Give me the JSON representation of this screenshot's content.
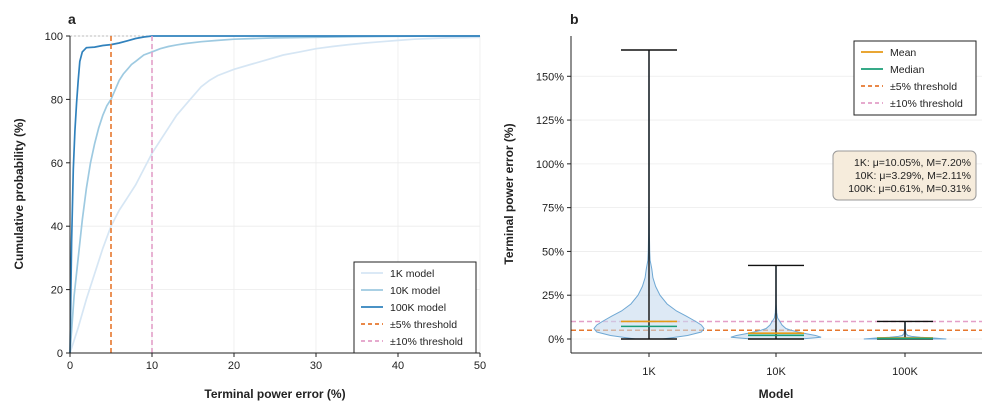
{
  "chart_data": [
    {
      "panel": "a",
      "type": "line",
      "xlabel": "Terminal power error (%)",
      "ylabel": "Cumulative probability (%)",
      "xlim": [
        0,
        50
      ],
      "ylim": [
        0,
        100
      ],
      "xticks": [
        0,
        10,
        20,
        30,
        40,
        50
      ],
      "yticks": [
        0,
        20,
        40,
        60,
        80,
        100
      ],
      "grid": true,
      "legend_position": "bottom-right",
      "reference_line_y": 100,
      "series": [
        {
          "name": "1K model",
          "color": "#d6e6f4",
          "x": [
            0,
            1,
            2,
            3,
            4,
            5,
            6,
            7,
            8,
            9,
            10,
            11,
            12,
            13,
            14,
            15,
            16,
            17,
            18,
            20,
            22,
            24,
            26,
            28,
            30,
            32,
            34,
            36,
            38,
            40,
            42,
            44,
            46,
            48,
            50
          ],
          "y": [
            0,
            8,
            17,
            25,
            33,
            40,
            45,
            49,
            53,
            58,
            63,
            67,
            71,
            75,
            78,
            81,
            84,
            86,
            87.5,
            89.5,
            91,
            92.5,
            94,
            95,
            96,
            96.7,
            97.3,
            97.8,
            98.2,
            98.6,
            99,
            99.2,
            99.4,
            99.5,
            99.6
          ]
        },
        {
          "name": "10K model",
          "color": "#9ecae1",
          "x": [
            0,
            0.5,
            1,
            1.5,
            2,
            2.5,
            3,
            3.5,
            4,
            4.5,
            5,
            5.5,
            6,
            6.5,
            7,
            7.5,
            8,
            8.5,
            9,
            10,
            11,
            12,
            13,
            14,
            16,
            18,
            20,
            25,
            30,
            35,
            40,
            45,
            50
          ],
          "y": [
            0,
            18,
            30,
            42,
            52,
            60,
            66,
            71,
            75,
            78,
            80,
            83,
            86,
            88,
            89.5,
            91,
            92,
            93,
            94,
            95,
            96,
            96.7,
            97.2,
            97.6,
            98.2,
            98.6,
            99,
            99.4,
            99.6,
            99.8,
            99.9,
            100,
            100
          ]
        },
        {
          "name": "100K model",
          "color": "#3182bd",
          "x": [
            0,
            0.2,
            0.4,
            0.6,
            0.8,
            1,
            1.2,
            1.5,
            2,
            3,
            4,
            5,
            6,
            7,
            8,
            9,
            10,
            12,
            15,
            20,
            30,
            40,
            50
          ],
          "y": [
            0,
            35,
            58,
            70,
            79,
            86,
            92,
            95,
            96.3,
            96.5,
            97,
            97.3,
            97.8,
            98.5,
            99.2,
            99.7,
            100,
            100,
            100,
            100,
            100,
            100,
            100
          ]
        },
        {
          "name": "±5% threshold",
          "color": "#e6772e",
          "style": "dashed",
          "x": [
            5,
            5
          ],
          "y": [
            0,
            100
          ]
        },
        {
          "name": "±10% threshold",
          "color": "#e39fc8",
          "style": "dashed",
          "x": [
            10,
            10
          ],
          "y": [
            0,
            100
          ]
        }
      ]
    },
    {
      "panel": "b",
      "type": "violin",
      "xlabel": "Model",
      "ylabel": "Terminal power error (%)",
      "categories": [
        "1K",
        "10K",
        "100K"
      ],
      "yticks": [
        0,
        25,
        50,
        75,
        100,
        125,
        150
      ],
      "ytick_labels": [
        "0%",
        "25%",
        "50%",
        "75%",
        "100%",
        "125%",
        "150%"
      ],
      "ylim": [
        -8,
        173
      ],
      "grid": true,
      "legend_position": "top-right",
      "thresholds": [
        {
          "name": "±5% threshold",
          "value": 5,
          "color": "#e6772e"
        },
        {
          "name": "±10% threshold",
          "value": 10,
          "color": "#e39fc8"
        }
      ],
      "mean_color": "#e69a17",
      "median_color": "#1a9e77",
      "violins": [
        {
          "model": "1K",
          "min": 0,
          "max": 165,
          "mean": 10.05,
          "median": 7.2,
          "profile": [
            [
              0,
              0.25
            ],
            [
              2,
              0.7
            ],
            [
              4,
              0.95
            ],
            [
              6,
              1.0
            ],
            [
              8,
              0.95
            ],
            [
              10,
              0.85
            ],
            [
              13,
              0.68
            ],
            [
              16,
              0.5
            ],
            [
              20,
              0.33
            ],
            [
              25,
              0.2
            ],
            [
              30,
              0.12
            ],
            [
              35,
              0.07
            ],
            [
              40,
              0.05
            ],
            [
              45,
              0.02
            ],
            [
              50,
              0.012
            ],
            [
              60,
              0.007
            ],
            [
              80,
              0.004
            ],
            [
              110,
              0.003
            ],
            [
              140,
              0.003
            ],
            [
              165,
              0.002
            ]
          ]
        },
        {
          "model": "10K",
          "min": 0,
          "max": 42,
          "mean": 3.29,
          "median": 2.11,
          "profile": [
            [
              0,
              0.45
            ],
            [
              1,
              0.82
            ],
            [
              2,
              0.72
            ],
            [
              3,
              0.55
            ],
            [
              4,
              0.4
            ],
            [
              5,
              0.27
            ],
            [
              6,
              0.18
            ],
            [
              8,
              0.11
            ],
            [
              10,
              0.07
            ],
            [
              12,
              0.03
            ],
            [
              15,
              0.012
            ],
            [
              20,
              0.006
            ],
            [
              30,
              0.004
            ],
            [
              42,
              0.003
            ]
          ]
        },
        {
          "model": "100K",
          "min": 0,
          "max": 10,
          "mean": 0.61,
          "median": 0.31,
          "profile": [
            [
              0,
              0.75
            ],
            [
              0.5,
              0.55
            ],
            [
              1,
              0.28
            ],
            [
              1.5,
              0.12
            ],
            [
              2,
              0.05
            ],
            [
              3,
              0.02
            ],
            [
              5,
              0.008
            ],
            [
              7,
              0.005
            ],
            [
              10,
              0.003
            ]
          ]
        }
      ],
      "stats_annotation": [
        "1K: μ=10.05%, M=7.20%",
        "10K: μ=3.29%, M=2.11%",
        "100K: μ=0.61%, M=0.31%"
      ],
      "legend": [
        "Mean",
        "Median",
        "±5% threshold",
        "±10% threshold"
      ]
    }
  ]
}
